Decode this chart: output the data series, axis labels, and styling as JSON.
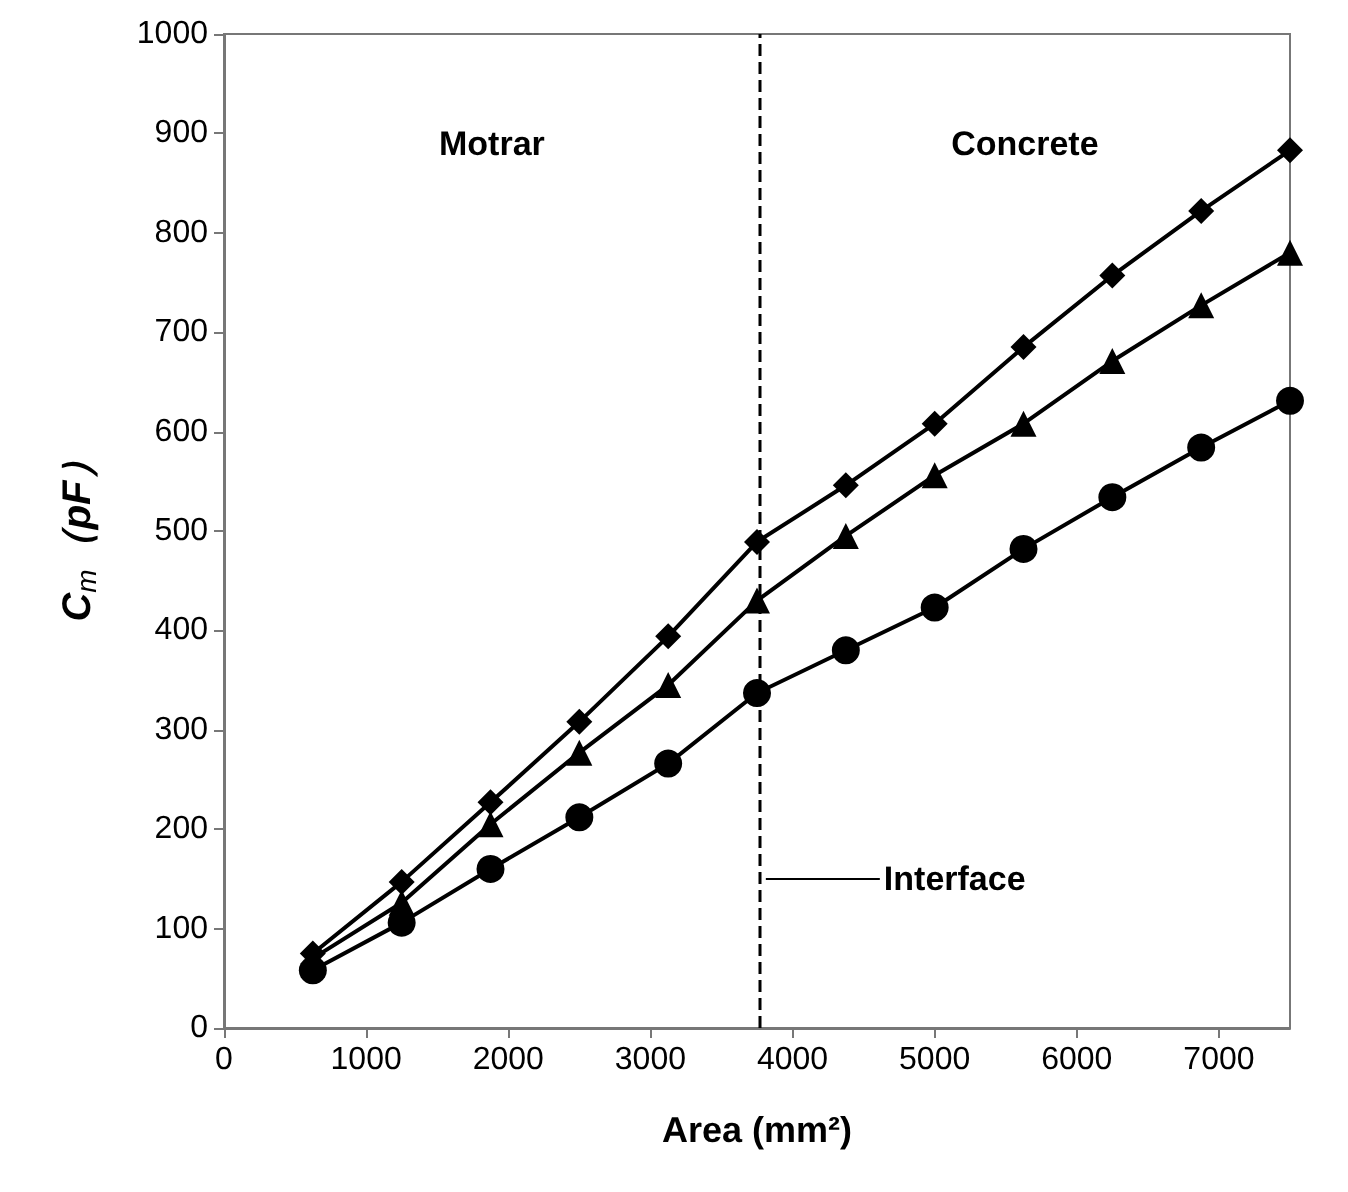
{
  "chart_data": {
    "type": "line",
    "xlabel": "Area (mm²)",
    "ylabel": "C$_{m}$（pF）",
    "x": [
      625,
      1250,
      1875,
      2500,
      3125,
      3750,
      4375,
      5000,
      5625,
      6250,
      6875,
      7500
    ],
    "series": [
      {
        "color": "#000000",
        "marker": "diamond",
        "values": [
          75,
          147,
          227,
          308,
          394,
          489,
          546,
          608,
          685,
          757,
          822,
          883
        ]
      },
      {
        "color": "#000000",
        "marker": "triangle",
        "values": [
          70,
          126,
          205,
          277,
          345,
          430,
          495,
          556,
          608,
          671,
          727,
          780
        ]
      },
      {
        "color": "#000000",
        "marker": "circle",
        "values": [
          58,
          106,
          160,
          212,
          266,
          337,
          380,
          423,
          482,
          534,
          584,
          631
        ]
      }
    ],
    "xlim": [
      0,
      7500
    ],
    "xticks": [
      0,
      1000,
      2000,
      3000,
      4000,
      5000,
      6000,
      7000
    ],
    "ylim": [
      0,
      1000
    ],
    "yticks": [
      0,
      100,
      200,
      300,
      400,
      500,
      600,
      700,
      800,
      900,
      1000
    ],
    "grid": false,
    "line_style": "solid",
    "ref_lines": [
      {
        "axis": "x",
        "value": 3770,
        "label": "Interface",
        "color": "#000000",
        "line_style": "dashed"
      }
    ],
    "annotations": [
      "Motrar",
      "Concrete"
    ]
  }
}
